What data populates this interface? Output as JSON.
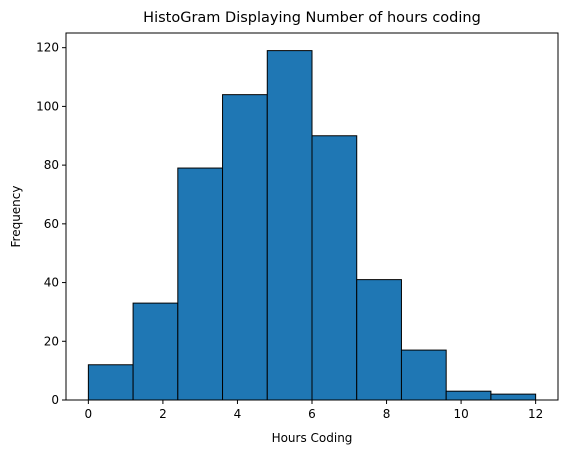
{
  "chart_data": {
    "type": "bar",
    "title": "HistoGram Displaying Number of hours coding",
    "xlabel": "Hours Coding",
    "ylabel": "Frequency",
    "bins": [
      {
        "start": 0.0,
        "end": 1.2,
        "count": 12
      },
      {
        "start": 1.2,
        "end": 2.4,
        "count": 33
      },
      {
        "start": 2.4,
        "end": 3.6,
        "count": 79
      },
      {
        "start": 3.6,
        "end": 4.8,
        "count": 104
      },
      {
        "start": 4.8,
        "end": 6.0,
        "count": 119
      },
      {
        "start": 6.0,
        "end": 7.2,
        "count": 90
      },
      {
        "start": 7.2,
        "end": 8.4,
        "count": 41
      },
      {
        "start": 8.4,
        "end": 9.6,
        "count": 17
      },
      {
        "start": 9.6,
        "end": 10.8,
        "count": 3
      },
      {
        "start": 10.8,
        "end": 12.0,
        "count": 2
      }
    ],
    "xlim": [
      -0.6,
      12.6
    ],
    "ylim": [
      0,
      125
    ],
    "xticks": [
      0,
      2,
      4,
      6,
      8,
      10,
      12
    ],
    "yticks": [
      0,
      20,
      40,
      60,
      80,
      100,
      120
    ],
    "grid": false,
    "colors": {
      "bar_fill": "#1f77b4",
      "bar_edge": "#000000",
      "axes": "#000000"
    }
  }
}
